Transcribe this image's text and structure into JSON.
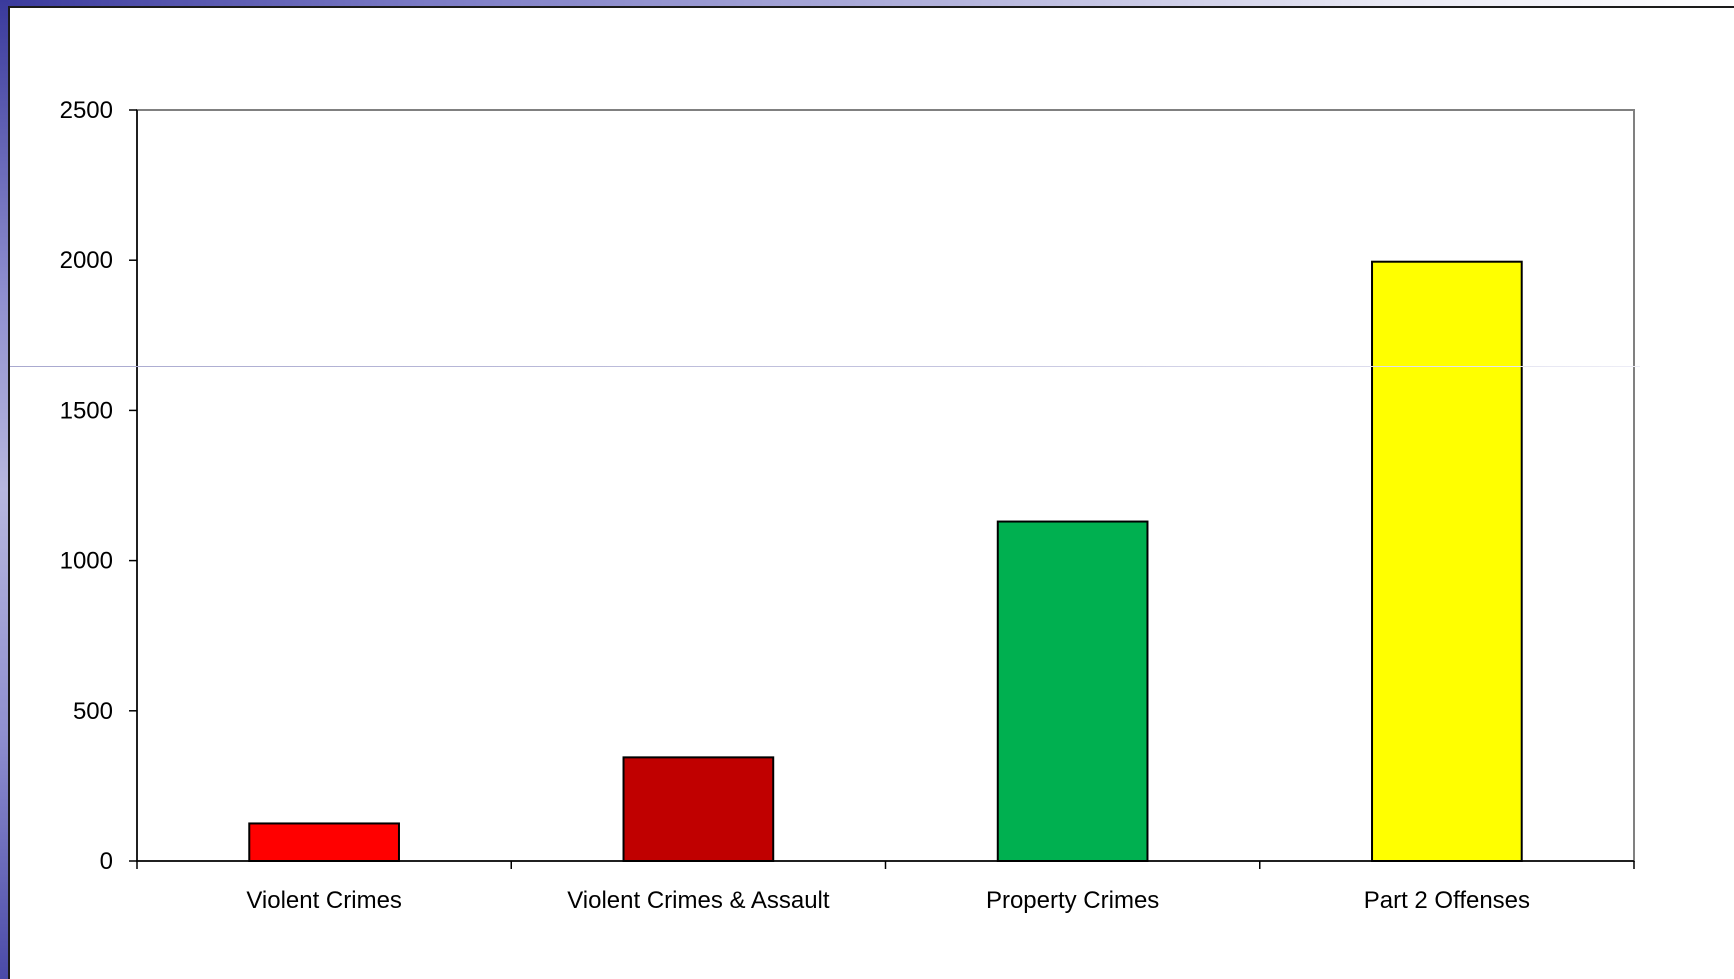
{
  "chart_data": {
    "type": "bar",
    "title": "",
    "xlabel": "",
    "ylabel": "",
    "categories": [
      "Violent Crimes",
      "Violent Crimes & Assault",
      "Property Crimes",
      "Part 2 Offenses"
    ],
    "values": [
      125,
      345,
      1130,
      1995
    ],
    "colors": [
      "#ff0000",
      "#c00000",
      "#00b050",
      "#ffff00"
    ],
    "ylim": [
      0,
      2500
    ],
    "yticks": [
      "0",
      "500",
      "1000",
      "1500",
      "2000",
      "2500"
    ],
    "grid": false,
    "legend": "none"
  }
}
